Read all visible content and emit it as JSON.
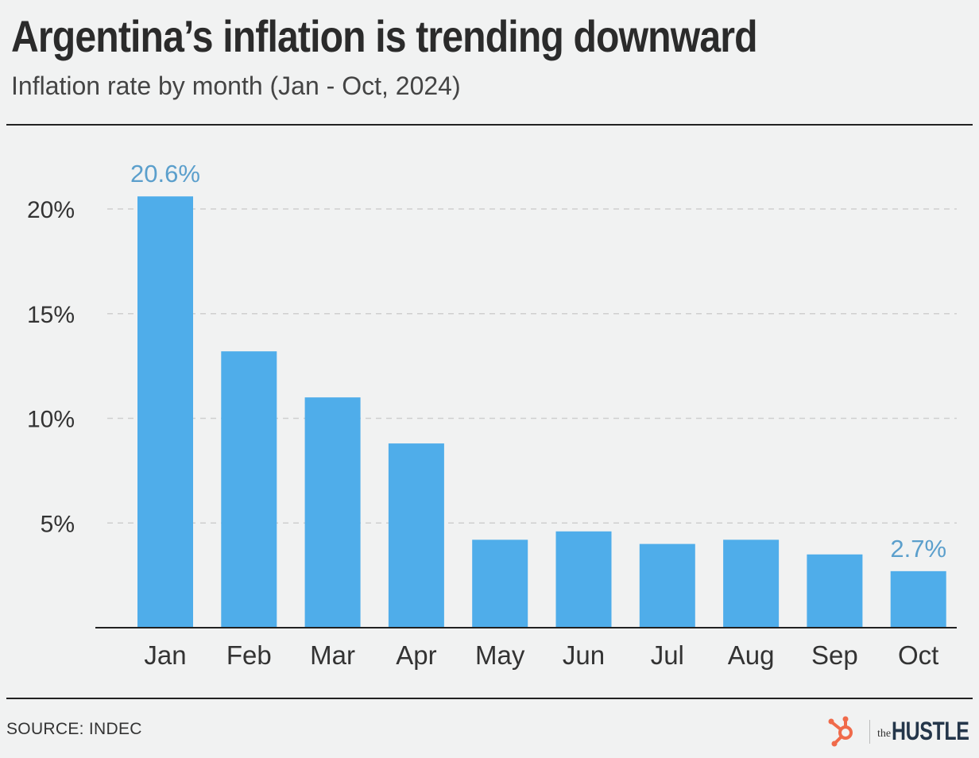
{
  "header": {
    "title": "Argentina’s inflation is trending downward",
    "subtitle": "Inflation rate by month (Jan - Oct, 2024)"
  },
  "footer": {
    "source": "SOURCE: INDEC",
    "brand_prefix": "the",
    "brand_name": "HUSTLE",
    "logo_icon": "hubspot-sprocket-icon"
  },
  "colors": {
    "bar": "#4fadea",
    "label": "#5b9fcc",
    "logo": "#f06a4a",
    "gridline": "#cfcfcf"
  },
  "chart_data": {
    "type": "bar",
    "title": "Argentina’s inflation is trending downward",
    "subtitle": "Inflation rate by month (Jan - Oct, 2024)",
    "categories": [
      "Jan",
      "Feb",
      "Mar",
      "Apr",
      "May",
      "Jun",
      "Jul",
      "Aug",
      "Sep",
      "Oct"
    ],
    "values": [
      20.6,
      13.2,
      11.0,
      8.8,
      4.2,
      4.6,
      4.0,
      4.2,
      3.5,
      2.7
    ],
    "ylim": [
      0,
      20
    ],
    "yticks": [
      5,
      10,
      15,
      20
    ],
    "ytick_labels": [
      "5%",
      "10%",
      "15%",
      "20%"
    ],
    "grid": true,
    "xlabel": "",
    "ylabel": "",
    "data_labels": [
      {
        "category": "Jan",
        "text": "20.6%"
      },
      {
        "category": "Oct",
        "text": "2.7%"
      }
    ]
  }
}
